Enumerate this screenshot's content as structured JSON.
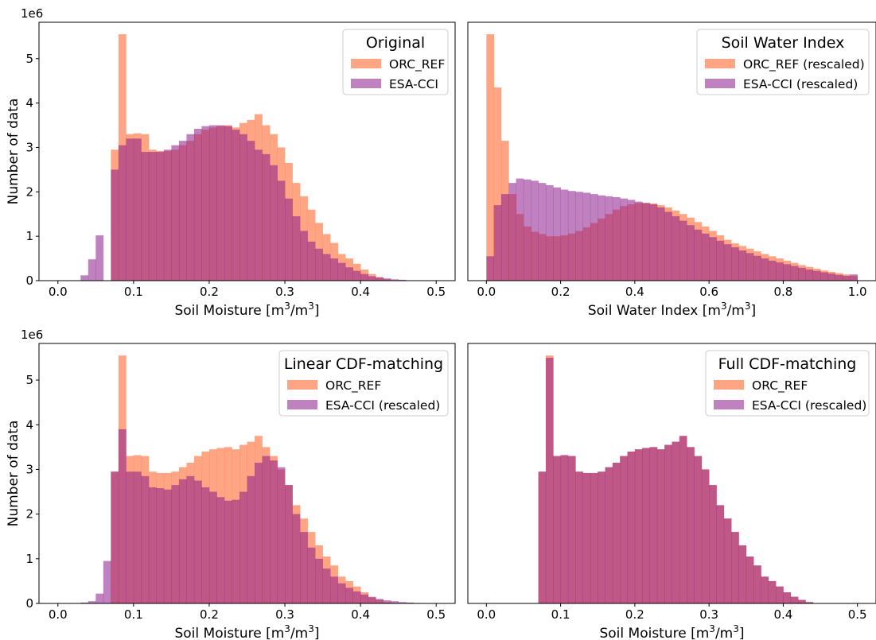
{
  "figure": {
    "ylabel": "Number of data",
    "offset_text": "1e6"
  },
  "chart_data": [
    {
      "type": "histogram",
      "panel": "top-left",
      "legend_title": "Original",
      "legend_position": "top-right",
      "xlabel": "Soil Moisture [m$^3$/m$^3$]",
      "ylabel": "Number of data",
      "y_offset_text": "1e6",
      "xlim": [
        -0.025,
        0.525
      ],
      "ylim": [
        0,
        5.82
      ],
      "xticks": [
        0.0,
        0.1,
        0.2,
        0.3,
        0.4,
        0.5
      ],
      "xtick_labels": [
        "0.0",
        "0.1",
        "0.2",
        "0.3",
        "0.4",
        "0.5"
      ],
      "yticks": [
        0,
        1,
        2,
        3,
        4,
        5
      ],
      "ytick_labels": [
        "0",
        "1",
        "2",
        "3",
        "4",
        "5"
      ],
      "bin_start": 0.0,
      "bin_width": 0.01,
      "series": [
        {
          "name": "ORC_REF",
          "color": "#ff7f50",
          "opacity": 0.7,
          "values": [
            0,
            0,
            0,
            0,
            0,
            0,
            0,
            2.95,
            5.55,
            3.3,
            3.32,
            3.3,
            2.95,
            2.92,
            2.92,
            2.95,
            3.05,
            3.15,
            3.3,
            3.4,
            3.45,
            3.48,
            3.5,
            3.45,
            3.55,
            3.62,
            3.75,
            3.5,
            3.3,
            3.0,
            2.65,
            2.2,
            1.9,
            1.6,
            1.3,
            1.05,
            0.85,
            0.6,
            0.5,
            0.38,
            0.25,
            0.15,
            0.08,
            0.03,
            0,
            0,
            0,
            0,
            0,
            0
          ]
        },
        {
          "name": "ESA-CCI",
          "color": "#8b1a8b",
          "opacity": 0.55,
          "values": [
            0,
            0,
            0,
            0.12,
            0.48,
            1.02,
            0,
            2.5,
            3.05,
            3.2,
            3.2,
            2.9,
            2.9,
            2.9,
            2.95,
            3.05,
            3.15,
            3.3,
            3.42,
            3.48,
            3.5,
            3.5,
            3.48,
            3.4,
            3.3,
            3.15,
            2.95,
            2.85,
            2.6,
            2.25,
            1.85,
            1.45,
            1.12,
            0.88,
            0.72,
            0.6,
            0.5,
            0.4,
            0.3,
            0.22,
            0.15,
            0.1,
            0.07,
            0.05,
            0.03,
            0.02,
            0,
            0,
            0,
            0
          ]
        }
      ]
    },
    {
      "type": "histogram",
      "panel": "top-right",
      "legend_title": "Soil Water Index",
      "legend_position": "top-right",
      "xlabel": "Soil Water Index [m$^3$/m$^3$]",
      "xlim": [
        -0.05,
        1.05
      ],
      "ylim": [
        0,
        5.82
      ],
      "xticks": [
        0.0,
        0.2,
        0.4,
        0.6,
        0.8,
        1.0
      ],
      "xtick_labels": [
        "0.0",
        "0.2",
        "0.4",
        "0.6",
        "0.8",
        "1.0"
      ],
      "bin_start": 0.0,
      "bin_width": 0.02,
      "series": [
        {
          "name": "ORC_REF (rescaled)",
          "color": "#ff7f50",
          "opacity": 0.7,
          "values": [
            5.55,
            4.35,
            3.15,
            1.95,
            1.5,
            1.22,
            1.1,
            1.05,
            1.0,
            1.0,
            1.02,
            1.06,
            1.12,
            1.2,
            1.3,
            1.4,
            1.5,
            1.6,
            1.68,
            1.72,
            1.75,
            1.75,
            1.74,
            1.7,
            1.65,
            1.58,
            1.5,
            1.42,
            1.32,
            1.22,
            1.12,
            1.02,
            0.92,
            0.84,
            0.78,
            0.72,
            0.66,
            0.6,
            0.55,
            0.5,
            0.45,
            0.4,
            0.35,
            0.31,
            0.27,
            0.23,
            0.2,
            0.17,
            0.14,
            0.11
          ]
        },
        {
          "name": "ESA-CCI (rescaled)",
          "color": "#8b1a8b",
          "opacity": 0.55,
          "values": [
            0.55,
            1.7,
            1.95,
            2.2,
            2.3,
            2.28,
            2.25,
            2.2,
            2.15,
            2.1,
            2.05,
            2.02,
            2.0,
            1.98,
            1.95,
            1.92,
            1.9,
            1.88,
            1.85,
            1.82,
            1.78,
            1.75,
            1.72,
            1.65,
            1.55,
            1.45,
            1.35,
            1.25,
            1.15,
            1.06,
            0.98,
            0.9,
            0.82,
            0.75,
            0.68,
            0.62,
            0.56,
            0.5,
            0.45,
            0.41,
            0.37,
            0.33,
            0.29,
            0.25,
            0.22,
            0.19,
            0.16,
            0.13,
            0.11,
            0.14
          ]
        }
      ]
    },
    {
      "type": "histogram",
      "panel": "bottom-left",
      "legend_title": "Linear CDF-matching",
      "legend_position": "top-right",
      "xlabel": "Soil Moisture [m$^3$/m$^3$]",
      "ylabel": "Number of data",
      "y_offset_text": "1e6",
      "xlim": [
        -0.025,
        0.525
      ],
      "ylim": [
        0,
        5.82
      ],
      "xticks": [
        0.0,
        0.1,
        0.2,
        0.3,
        0.4,
        0.5
      ],
      "xtick_labels": [
        "0.0",
        "0.1",
        "0.2",
        "0.3",
        "0.4",
        "0.5"
      ],
      "yticks": [
        0,
        1,
        2,
        3,
        4,
        5
      ],
      "ytick_labels": [
        "0",
        "1",
        "2",
        "3",
        "4",
        "5"
      ],
      "bin_start": 0.0,
      "bin_width": 0.01,
      "series": [
        {
          "name": "ORC_REF",
          "color": "#ff7f50",
          "opacity": 0.7,
          "values": [
            0,
            0,
            0,
            0,
            0,
            0,
            0,
            2.95,
            5.55,
            3.3,
            3.32,
            3.3,
            2.95,
            2.92,
            2.92,
            2.95,
            3.05,
            3.15,
            3.3,
            3.4,
            3.45,
            3.48,
            3.5,
            3.45,
            3.55,
            3.62,
            3.75,
            3.5,
            3.3,
            3.0,
            2.65,
            2.2,
            1.9,
            1.6,
            1.3,
            1.05,
            0.85,
            0.6,
            0.5,
            0.38,
            0.25,
            0.15,
            0.08,
            0.03,
            0,
            0,
            0,
            0,
            0,
            0
          ]
        },
        {
          "name": "ESA-CCI (rescaled)",
          "color": "#8b1a8b",
          "opacity": 0.55,
          "values": [
            0,
            0,
            0,
            0.02,
            0.05,
            0.22,
            0.95,
            2.95,
            3.9,
            2.95,
            2.95,
            2.85,
            2.6,
            2.58,
            2.55,
            2.65,
            2.78,
            2.85,
            2.75,
            2.6,
            2.5,
            2.38,
            2.3,
            2.32,
            2.5,
            2.85,
            3.15,
            3.3,
            3.2,
            3.05,
            2.65,
            2.0,
            1.6,
            1.25,
            1.0,
            0.78,
            0.6,
            0.45,
            0.35,
            0.27,
            0.2,
            0.14,
            0.1,
            0.07,
            0.05,
            0.03,
            0.02,
            0.01,
            0,
            0
          ]
        }
      ]
    },
    {
      "type": "histogram",
      "panel": "bottom-right",
      "legend_title": "Full CDF-matching",
      "legend_position": "top-right",
      "xlabel": "Soil Moisture [m$^3$/m$^3$]",
      "xlim": [
        -0.025,
        0.525
      ],
      "ylim": [
        0,
        5.82
      ],
      "xticks": [
        0.0,
        0.1,
        0.2,
        0.3,
        0.4,
        0.5
      ],
      "xtick_labels": [
        "0.0",
        "0.1",
        "0.2",
        "0.3",
        "0.4",
        "0.5"
      ],
      "bin_start": 0.0,
      "bin_width": 0.01,
      "series": [
        {
          "name": "ORC_REF",
          "color": "#ff7f50",
          "opacity": 0.7,
          "values": [
            0,
            0,
            0,
            0,
            0,
            0,
            0,
            2.95,
            5.55,
            3.3,
            3.32,
            3.3,
            2.95,
            2.92,
            2.92,
            2.95,
            3.05,
            3.15,
            3.3,
            3.4,
            3.45,
            3.48,
            3.5,
            3.45,
            3.55,
            3.62,
            3.75,
            3.5,
            3.3,
            3.0,
            2.65,
            2.2,
            1.9,
            1.6,
            1.3,
            1.05,
            0.85,
            0.6,
            0.5,
            0.38,
            0.25,
            0.15,
            0.08,
            0.03,
            0,
            0,
            0,
            0,
            0,
            0
          ]
        },
        {
          "name": "ESA-CCI (rescaled)",
          "color": "#8b1a8b",
          "opacity": 0.55,
          "values": [
            0,
            0,
            0,
            0,
            0,
            0,
            0,
            2.95,
            5.5,
            3.3,
            3.32,
            3.3,
            2.95,
            2.92,
            2.92,
            2.95,
            3.05,
            3.15,
            3.3,
            3.4,
            3.45,
            3.48,
            3.5,
            3.45,
            3.55,
            3.62,
            3.75,
            3.5,
            3.3,
            3.0,
            2.65,
            2.2,
            1.9,
            1.6,
            1.3,
            1.05,
            0.85,
            0.6,
            0.5,
            0.38,
            0.25,
            0.15,
            0.08,
            0.03,
            0,
            0,
            0,
            0,
            0,
            0
          ]
        }
      ]
    }
  ]
}
